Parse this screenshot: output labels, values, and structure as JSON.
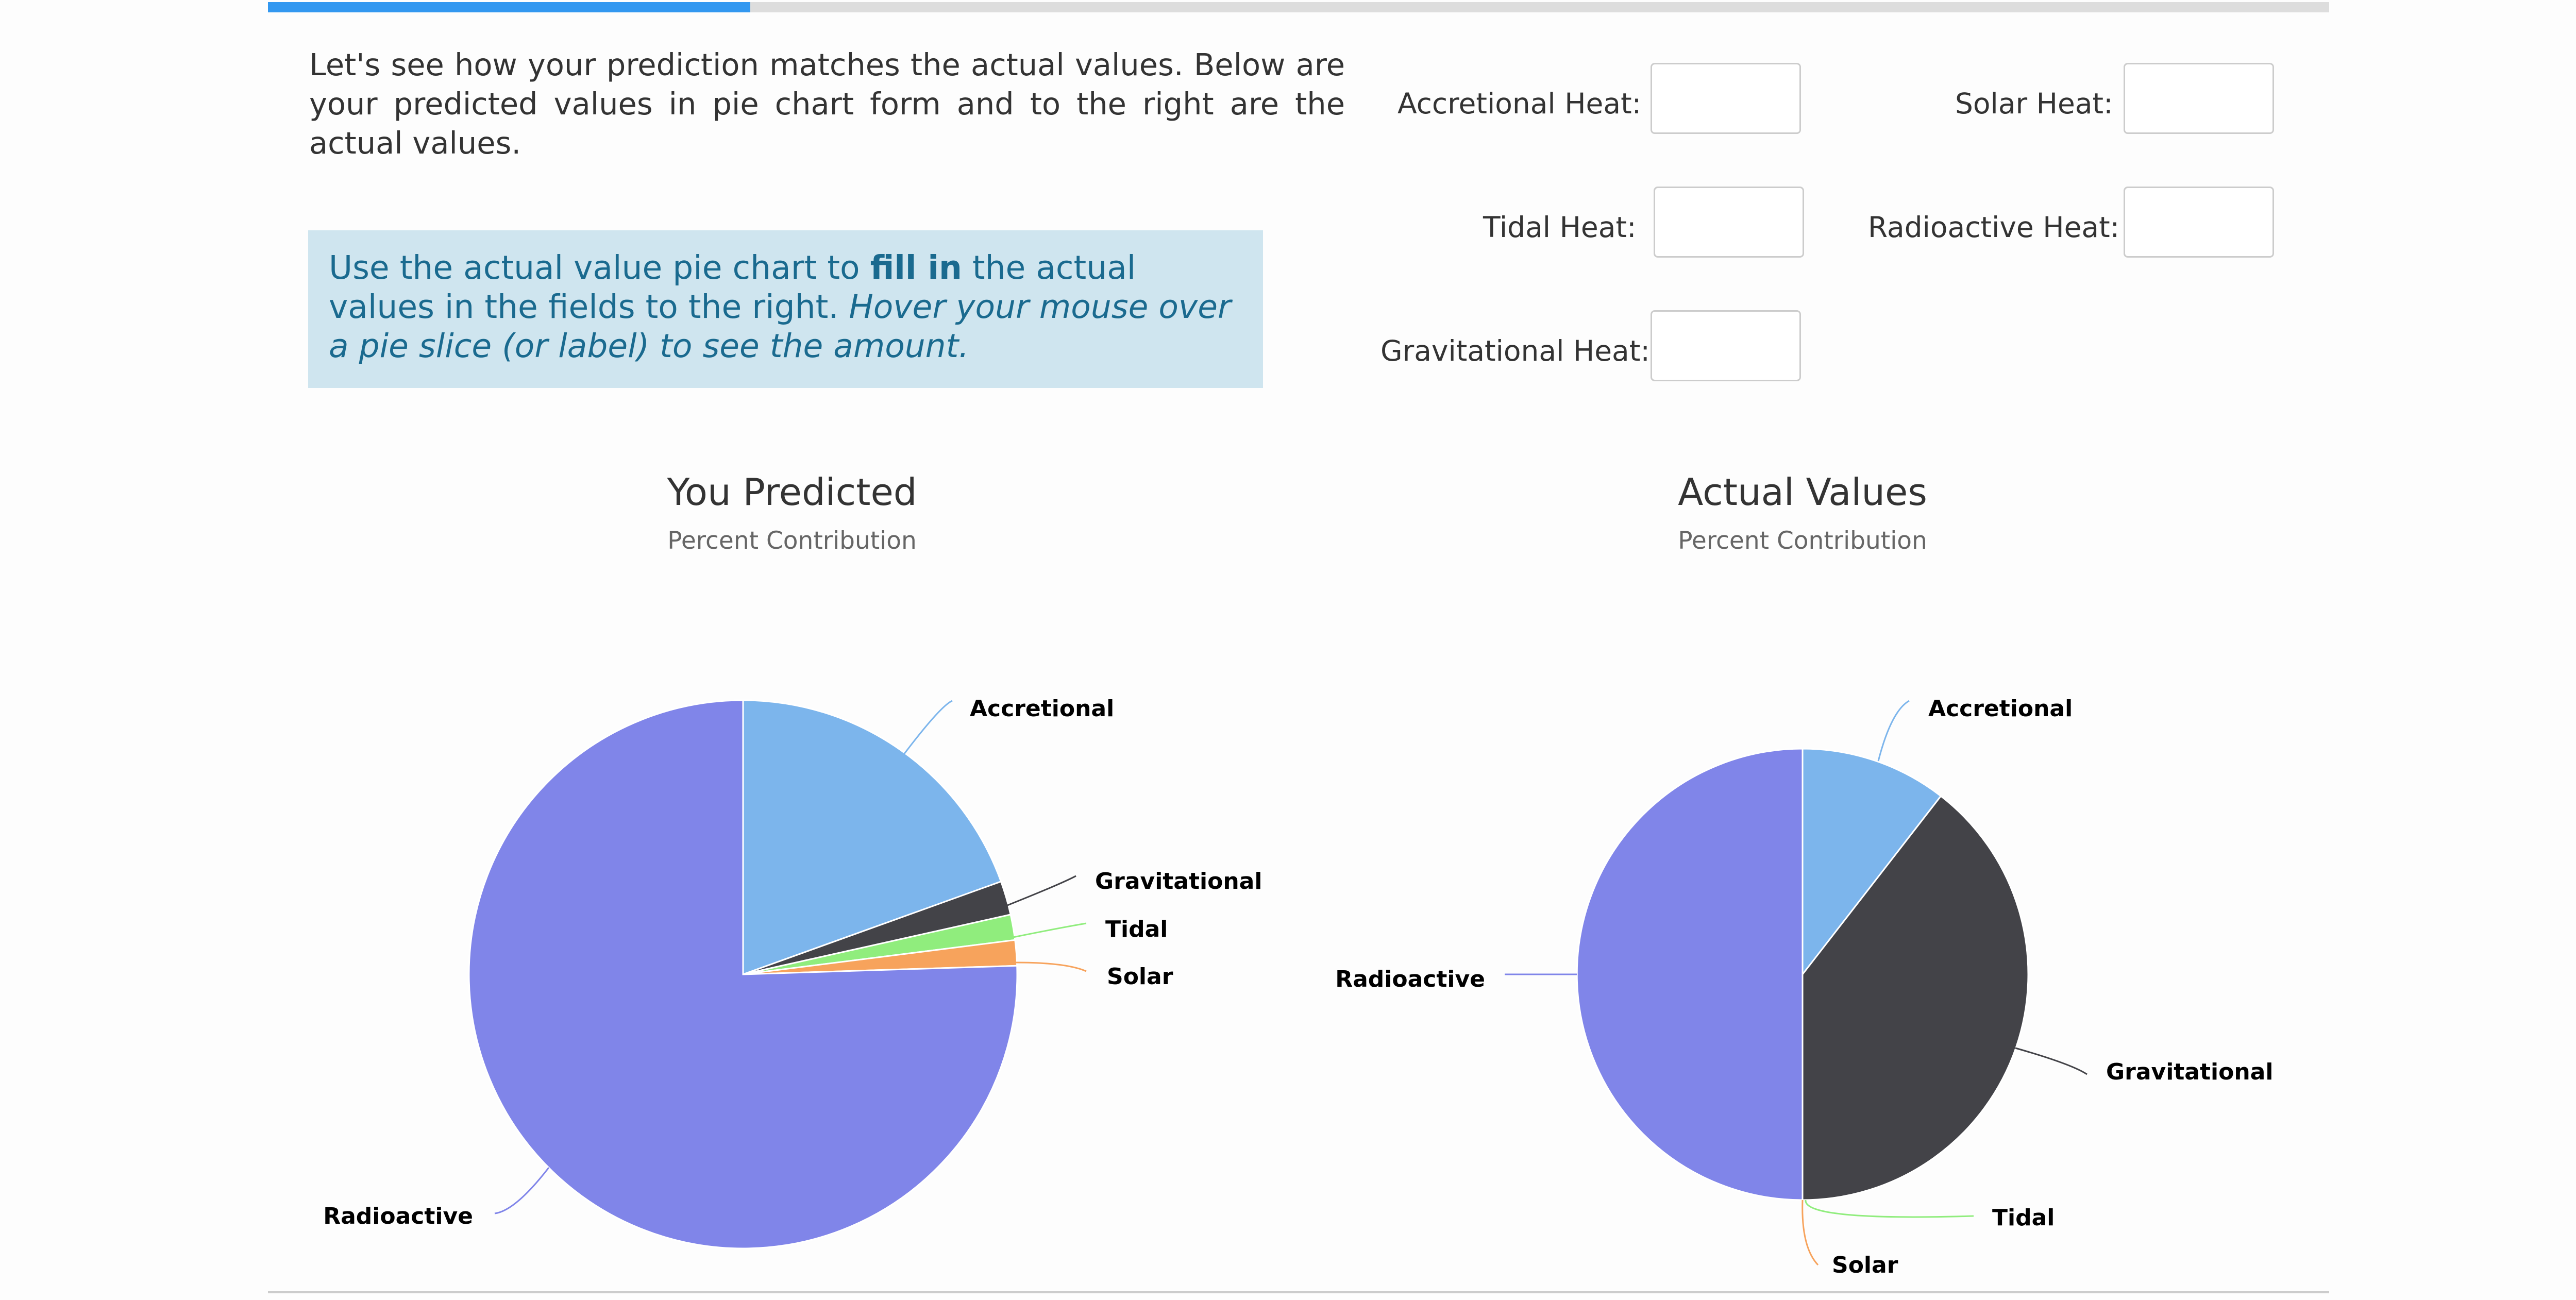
{
  "progress": {
    "fraction": 0.234
  },
  "intro_text": "Let's see how your prediction matches the actual values. Below are your predicted values in pie chart form and to the right are the actual values.",
  "hint": {
    "part1": "Use the actual value pie chart to ",
    "bold": "fill in",
    "part2": " the actual values in the fields to the right. ",
    "italic": "Hover your mouse over a pie slice (or label) to see the amount."
  },
  "fields": {
    "accretional": {
      "label": "Accretional Heat:",
      "value": ""
    },
    "solar": {
      "label": "Solar Heat:",
      "value": ""
    },
    "tidal": {
      "label": "Tidal Heat:",
      "value": ""
    },
    "radioactive": {
      "label": "Radioactive Heat:",
      "value": ""
    },
    "gravitational": {
      "label": "Gravitational Heat:",
      "value": ""
    }
  },
  "colors": {
    "accretional": "#7cb5ec",
    "gravitational": "#434348",
    "tidal": "#90ed7d",
    "solar": "#f7a35c",
    "radioactive": "#8085e9",
    "hint_bg": "#cfe5ef",
    "hint_text": "#1a6a8f",
    "progress": "#3398f0"
  },
  "chart_data": [
    {
      "type": "pie",
      "title": "You Predicted",
      "subtitle": "Percent Contribution",
      "slices": [
        {
          "name": "Accretional",
          "value": 19.5,
          "color": "#7cb5ec"
        },
        {
          "name": "Gravitational",
          "value": 2.0,
          "color": "#434348"
        },
        {
          "name": "Tidal",
          "value": 1.5,
          "color": "#90ed7d"
        },
        {
          "name": "Solar",
          "value": 1.5,
          "color": "#f7a35c"
        },
        {
          "name": "Radioactive",
          "value": 75.5,
          "color": "#8085e9"
        }
      ]
    },
    {
      "type": "pie",
      "title": "Actual Values",
      "subtitle": "Percent Contribution",
      "slices": [
        {
          "name": "Accretional",
          "value": 10.5,
          "color": "#7cb5ec"
        },
        {
          "name": "Gravitational",
          "value": 39.5,
          "color": "#434348"
        },
        {
          "name": "Tidal",
          "value": 0.0,
          "color": "#90ed7d"
        },
        {
          "name": "Solar",
          "value": 0.0,
          "color": "#f7a35c"
        },
        {
          "name": "Radioactive",
          "value": 50.0,
          "color": "#8085e9"
        }
      ]
    }
  ]
}
